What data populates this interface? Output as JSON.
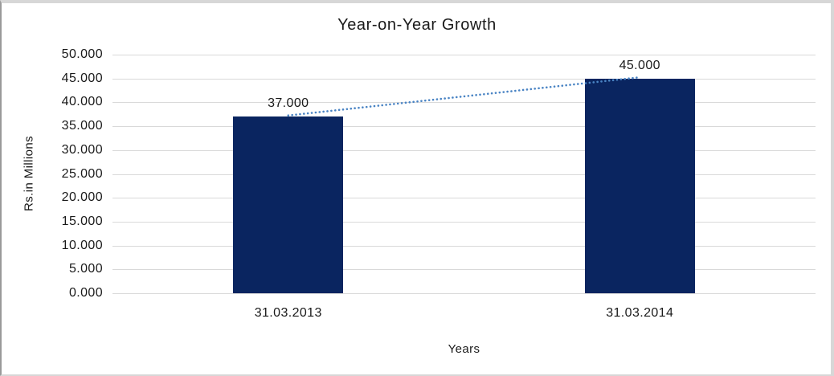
{
  "chart_data": {
    "type": "bar",
    "title": "Year-on-Year Growth",
    "xlabel": "Years",
    "ylabel": "Rs.in Millions",
    "categories": [
      "31.03.2013",
      "31.03.2014"
    ],
    "values": [
      37,
      45
    ],
    "data_labels": [
      "37.000",
      "45.000"
    ],
    "ylim": [
      0,
      50
    ],
    "ytick_step": 5,
    "ytick_labels": [
      "0.000",
      "5.000",
      "10.000",
      "15.000",
      "20.000",
      "25.000",
      "30.000",
      "35.000",
      "40.000",
      "45.000",
      "50.000"
    ],
    "grid": "horizontal",
    "legend": "none",
    "trendline": {
      "type": "linear",
      "style": "dotted",
      "color": "#4a84c4"
    },
    "colors": {
      "bar": "#0a2560",
      "gridline": "#d9d9d9",
      "text": "#1a1a1a",
      "frame": "#d7d7d7"
    }
  }
}
